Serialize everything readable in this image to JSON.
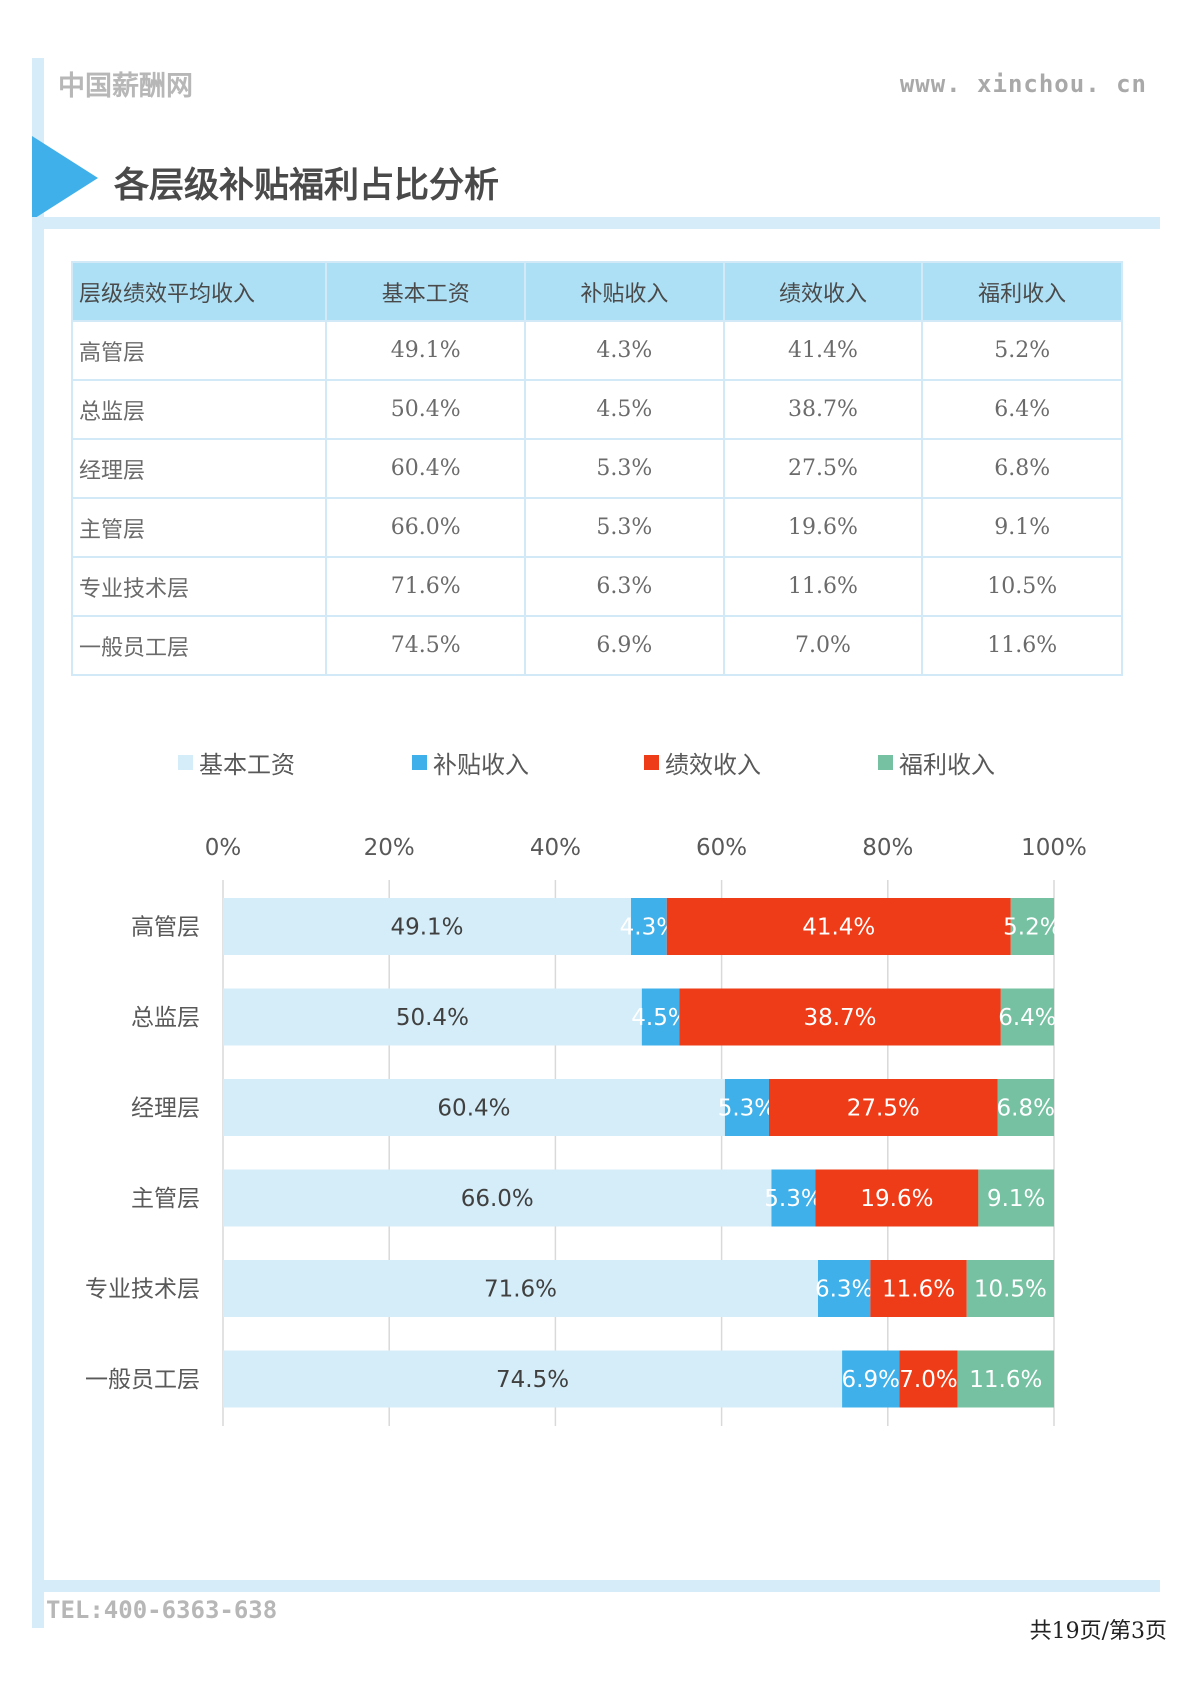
{
  "header": {
    "brand": "中国薪酬网",
    "website": "www. xinchou. cn"
  },
  "page_title": "各层级补贴福利占比分析",
  "table": {
    "headers": [
      "层级绩效平均收入",
      "基本工资",
      "补贴收入",
      "绩效收入",
      "福利收入"
    ],
    "rows": [
      [
        "高管层",
        "49.1%",
        "4.3%",
        "41.4%",
        "5.2%"
      ],
      [
        "总监层",
        "50.4%",
        "4.5%",
        "38.7%",
        "6.4%"
      ],
      [
        "经理层",
        "60.4%",
        "5.3%",
        "27.5%",
        "6.8%"
      ],
      [
        "主管层",
        "66.0%",
        "5.3%",
        "19.6%",
        "9.1%"
      ],
      [
        "专业技术层",
        "71.6%",
        "6.3%",
        "11.6%",
        "10.5%"
      ],
      [
        "一般员工层",
        "74.5%",
        "6.9%",
        "7.0%",
        "11.6%"
      ]
    ]
  },
  "chart_data": {
    "type": "bar",
    "orientation": "horizontal",
    "stacked": true,
    "title": "",
    "xlabel": "",
    "ylabel": "",
    "legend_position": "top",
    "grid": true,
    "xlim": [
      0,
      100
    ],
    "x_ticks": [
      "0%",
      "20%",
      "40%",
      "60%",
      "80%",
      "100%"
    ],
    "categories": [
      "高管层",
      "总监层",
      "经理层",
      "主管层",
      "专业技术层",
      "一般员工层"
    ],
    "series": [
      {
        "name": "基本工资",
        "color": "#d5edf8",
        "label_color": "#404040",
        "values": [
          49.1,
          50.4,
          60.4,
          66.0,
          71.6,
          74.5
        ]
      },
      {
        "name": "补贴收入",
        "color": "#3fb0e9",
        "label_color": "#ffffff",
        "values": [
          4.3,
          4.5,
          5.3,
          5.3,
          6.3,
          6.9
        ]
      },
      {
        "name": "绩效收入",
        "color": "#ee3c18",
        "label_color": "#ffffff",
        "values": [
          41.4,
          38.7,
          27.5,
          19.6,
          11.6,
          7.0
        ]
      },
      {
        "name": "福利收入",
        "color": "#75c1a2",
        "label_color": "#ffffff",
        "values": [
          5.2,
          6.4,
          6.8,
          9.1,
          10.5,
          11.6
        ]
      }
    ]
  },
  "footer": {
    "tel": "TEL:400-6363-638",
    "page_info": "共19页/第3页"
  }
}
